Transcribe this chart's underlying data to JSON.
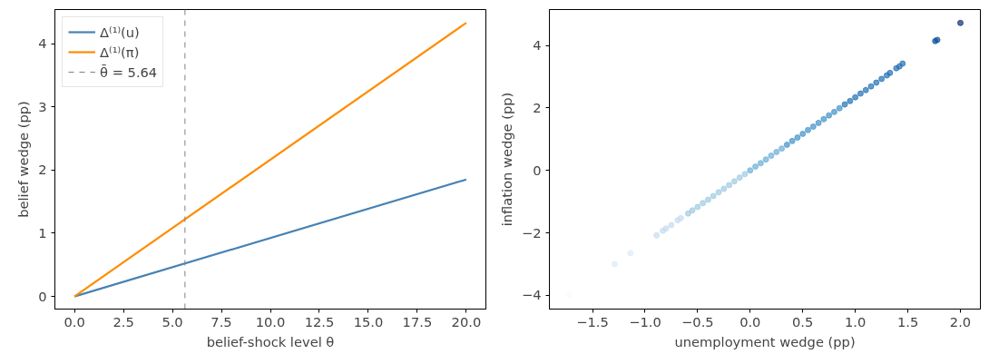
{
  "chart_data": [
    {
      "type": "line",
      "xlabel": "belief-shock level θ",
      "ylabel": "belief wedge (pp)",
      "x": [
        0,
        20
      ],
      "series": [
        {
          "name": "Δ⁽¹⁾(u)",
          "color": "#4682b4",
          "values": [
            0,
            1.85
          ]
        },
        {
          "name": "Δ⁽¹⁾(π)",
          "color": "#ff8c00",
          "values": [
            0,
            4.33
          ]
        }
      ],
      "ref_lines": [
        {
          "axis": "x",
          "value": 5.64,
          "label": "θ̄ = 5.64",
          "color": "#808080",
          "line_style": "dashed"
        }
      ],
      "xlim": [
        -1,
        21
      ],
      "ylim": [
        -0.2,
        4.54
      ],
      "xticks": [
        {
          "value": 0,
          "label": "0.0"
        },
        {
          "value": 2.5,
          "label": "2.5"
        },
        {
          "value": 5,
          "label": "5.0"
        },
        {
          "value": 7.5,
          "label": "7.5"
        },
        {
          "value": 10,
          "label": "10.0"
        },
        {
          "value": 12.5,
          "label": "12.5"
        },
        {
          "value": 15,
          "label": "15.0"
        },
        {
          "value": 17.5,
          "label": "17.5"
        },
        {
          "value": 20,
          "label": "20.0"
        }
      ],
      "yticks": [
        0,
        1,
        2,
        3,
        4
      ],
      "legend": "top left",
      "grid": false,
      "line_style": "solid",
      "marker": "none"
    },
    {
      "type": "scatter",
      "xlabel": "unemployment wedge (pp)",
      "ylabel": "inflation wedge (pp)",
      "x": [
        -1.72,
        -1.29,
        -1.14,
        -0.89,
        -0.83,
        -0.8,
        -0.75,
        -0.69,
        -0.66,
        -0.59,
        -0.55,
        -0.5,
        -0.45,
        -0.4,
        -0.35,
        -0.3,
        -0.25,
        -0.2,
        -0.15,
        -0.1,
        -0.05,
        0,
        0.05,
        0.1,
        0.15,
        0.2,
        0.25,
        0.3,
        0.35,
        0.4,
        0.45,
        0.5,
        0.55,
        0.6,
        0.65,
        0.7,
        0.75,
        0.8,
        0.85,
        0.9,
        0.95,
        1.0,
        1.05,
        1.1,
        1.15,
        1.2,
        1.25,
        1.3,
        1.33,
        1.39,
        1.42,
        1.45,
        1.76,
        1.78,
        2.0
      ],
      "values": [
        -4.0,
        -3.0,
        -2.65,
        -2.08,
        -1.93,
        -1.86,
        -1.75,
        -1.6,
        -1.53,
        -1.38,
        -1.28,
        -1.17,
        -1.05,
        -0.94,
        -0.82,
        -0.7,
        -0.59,
        -0.47,
        -0.35,
        -0.23,
        -0.12,
        0,
        0.12,
        0.23,
        0.35,
        0.47,
        0.59,
        0.7,
        0.82,
        0.94,
        1.05,
        1.17,
        1.29,
        1.4,
        1.52,
        1.64,
        1.76,
        1.87,
        1.99,
        2.11,
        2.22,
        2.34,
        2.46,
        2.57,
        2.69,
        2.81,
        2.93,
        3.04,
        3.12,
        3.27,
        3.33,
        3.42,
        4.14,
        4.18,
        4.72
      ],
      "colors": [
        "#f7fbff",
        "#deebf7",
        "#deebf7",
        "#c6dbef",
        "#c6dbef",
        "#c6dbef",
        "#c6dbef",
        "#c6dbef",
        "#c6dbef",
        "#9ecae1",
        "#9ecae1",
        "#9ecae1",
        "#9ecae1",
        "#9ecae1",
        "#9ecae1",
        "#9ecae1",
        "#9ecae1",
        "#9ecae1",
        "#9ecae1",
        "#9ecae1",
        "#9ecae1",
        "#6baed6",
        "#6baed6",
        "#6baed6",
        "#6baed6",
        "#6baed6",
        "#6baed6",
        "#6baed6",
        "#4292c6",
        "#4292c6",
        "#4292c6",
        "#4292c6",
        "#4292c6",
        "#4292c6",
        "#4292c6",
        "#4292c6",
        "#4292c6",
        "#4292c6",
        "#4292c6",
        "#2171b5",
        "#2171b5",
        "#2171b5",
        "#2171b5",
        "#2171b5",
        "#2171b5",
        "#2171b5",
        "#2171b5",
        "#2171b5",
        "#2171b5",
        "#2171b5",
        "#2171b5",
        "#2171b5",
        "#08519c",
        "#08519c",
        "#08306b"
      ],
      "xlim": [
        -1.91,
        2.19
      ],
      "ylim": [
        -4.44,
        5.15
      ],
      "xticks": [
        {
          "value": -1.5,
          "label": "−1.5"
        },
        {
          "value": -1,
          "label": "−1.0"
        },
        {
          "value": -0.5,
          "label": "−0.5"
        },
        {
          "value": 0,
          "label": "0.0"
        },
        {
          "value": 0.5,
          "label": "0.5"
        },
        {
          "value": 1,
          "label": "1.0"
        },
        {
          "value": 1.5,
          "label": "1.5"
        },
        {
          "value": 2,
          "label": "2.0"
        }
      ],
      "yticks": [
        {
          "value": -4,
          "label": "−4"
        },
        {
          "value": -2,
          "label": "−2"
        },
        0,
        2,
        4
      ],
      "grid": false,
      "marker": "circle"
    }
  ]
}
